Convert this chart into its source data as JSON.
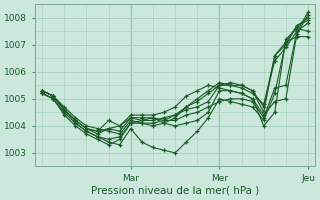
{
  "title": "",
  "xlabel": "Pression niveau de la mer( hPa )",
  "ylabel": "",
  "bg_color": "#cce8dc",
  "line_color": "#1a5c28",
  "grid_color": "#a8cfc0",
  "ylim": [
    1002.5,
    1008.4
  ],
  "xlim": [
    -2,
    74
  ],
  "yticks": [
    1003,
    1004,
    1005,
    1006,
    1007,
    1008
  ],
  "xticks": [
    24,
    48,
    72
  ],
  "xticklabels": [
    "Mar",
    "Mer",
    "Jeu"
  ],
  "lines": [
    [
      0,
      1005.3,
      3,
      1005.1,
      6,
      1004.7,
      9,
      1004.3,
      12,
      1004.0,
      15,
      1003.9,
      18,
      1003.8,
      21,
      1003.7,
      24,
      1004.2,
      27,
      1004.1,
      30,
      1004.0,
      33,
      1004.1,
      36,
      1004.0,
      39,
      1004.1,
      42,
      1004.2,
      45,
      1004.5,
      48,
      1005.3,
      51,
      1005.3,
      54,
      1005.2,
      57,
      1005.0,
      60,
      1004.0,
      63,
      1004.5,
      66,
      1007.2,
      69,
      1007.6,
      72,
      1007.5
    ],
    [
      0,
      1005.2,
      3,
      1005.0,
      6,
      1004.5,
      9,
      1004.1,
      12,
      1003.8,
      15,
      1003.6,
      18,
      1003.4,
      21,
      1003.3,
      24,
      1003.9,
      27,
      1003.4,
      30,
      1003.2,
      33,
      1003.1,
      36,
      1003.0,
      39,
      1003.4,
      42,
      1003.8,
      45,
      1004.3,
      48,
      1005.0,
      51,
      1004.9,
      54,
      1004.8,
      57,
      1004.7,
      60,
      1004.2,
      63,
      1005.2,
      66,
      1007.1,
      69,
      1007.3,
      72,
      1007.3
    ],
    [
      0,
      1005.2,
      3,
      1005.0,
      6,
      1004.4,
      9,
      1004.0,
      12,
      1003.7,
      15,
      1003.5,
      18,
      1003.3,
      21,
      1003.5,
      24,
      1004.1,
      27,
      1004.2,
      30,
      1004.3,
      33,
      1004.1,
      36,
      1004.3,
      39,
      1004.7,
      42,
      1005.0,
      45,
      1005.3,
      48,
      1005.6,
      51,
      1005.5,
      54,
      1005.4,
      57,
      1005.2,
      60,
      1004.8,
      63,
      1006.4,
      66,
      1006.9,
      69,
      1007.5,
      72,
      1007.8
    ],
    [
      0,
      1005.3,
      3,
      1005.1,
      6,
      1004.6,
      9,
      1004.2,
      12,
      1003.9,
      15,
      1003.7,
      18,
      1003.9,
      21,
      1003.8,
      24,
      1004.3,
      27,
      1004.3,
      30,
      1004.3,
      33,
      1004.2,
      36,
      1004.4,
      39,
      1004.7,
      42,
      1004.9,
      45,
      1005.2,
      48,
      1005.5,
      51,
      1005.6,
      54,
      1005.5,
      57,
      1005.3,
      60,
      1004.7,
      63,
      1006.6,
      66,
      1007.1,
      69,
      1007.7,
      72,
      1007.9
    ],
    [
      0,
      1005.3,
      3,
      1005.1,
      6,
      1004.6,
      9,
      1004.2,
      12,
      1003.9,
      15,
      1003.8,
      18,
      1003.9,
      21,
      1004.0,
      24,
      1004.4,
      27,
      1004.4,
      30,
      1004.4,
      33,
      1004.5,
      36,
      1004.7,
      39,
      1005.1,
      42,
      1005.3,
      45,
      1005.5,
      48,
      1005.4,
      51,
      1005.3,
      54,
      1005.2,
      57,
      1005.0,
      60,
      1004.4,
      63,
      1004.9,
      66,
      1005.0,
      69,
      1007.4,
      72,
      1008.1
    ],
    [
      0,
      1005.2,
      3,
      1005.0,
      6,
      1004.5,
      9,
      1004.1,
      12,
      1003.8,
      15,
      1003.6,
      18,
      1003.5,
      21,
      1003.6,
      24,
      1004.1,
      27,
      1004.1,
      30,
      1004.1,
      33,
      1004.2,
      36,
      1004.2,
      39,
      1004.4,
      42,
      1004.5,
      45,
      1004.7,
      48,
      1004.9,
      51,
      1005.0,
      54,
      1005.0,
      57,
      1004.9,
      60,
      1004.3,
      63,
      1005.4,
      66,
      1005.5,
      69,
      1007.5,
      72,
      1008.2
    ],
    [
      0,
      1005.3,
      3,
      1005.1,
      6,
      1004.6,
      9,
      1004.2,
      12,
      1003.9,
      15,
      1003.8,
      18,
      1004.2,
      21,
      1004.0,
      24,
      1004.3,
      27,
      1004.2,
      30,
      1004.2,
      33,
      1004.3,
      36,
      1004.4,
      39,
      1004.6,
      42,
      1004.7,
      45,
      1004.9,
      48,
      1005.5,
      51,
      1005.5,
      54,
      1005.5,
      57,
      1005.3,
      60,
      1004.5,
      63,
      1006.6,
      66,
      1007.0,
      69,
      1007.7,
      72,
      1008.0
    ]
  ],
  "marker": "+",
  "markersize": 3,
  "linewidth": 0.8,
  "tick_fontsize": 6.5,
  "xlabel_fontsize": 7.5
}
